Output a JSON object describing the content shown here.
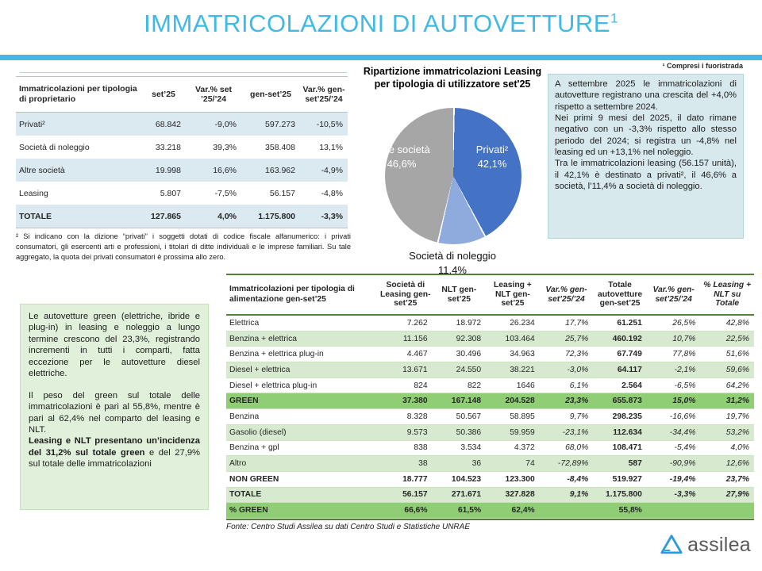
{
  "page": {
    "title": "IMMATRICOLAZIONI DI AUTOVETTURE",
    "title_superscript": "1",
    "top_note": "¹ Compresi i fuoristrada",
    "fonte": "Fonte: Centro Studi Assilea su dati Centro Studi e Statistiche UNRAE",
    "logo_text": "assilea"
  },
  "colors": {
    "accent_teal": "#41B8E6",
    "title_blue": "#3FB9E5",
    "owner_row_shade": "#DBE9F1",
    "info_box_bg": "#D8E9EE",
    "green_box_bg": "#E1F0DB",
    "fuel_row_shade": "#D7EACF",
    "fuel_row_green": "#8FCE74",
    "fuel_border_green": "#548235",
    "logo_blue": "#2D9CDB",
    "logo_gray": "#58595B"
  },
  "owner_table": {
    "title_header": "Immatricolazioni per tipologia di proprietario",
    "col_headers": [
      "set’25",
      "Var.% set ’25/’24",
      "gen-set’25",
      "Var.% gen-set’25/’24"
    ],
    "col_classes": [
      "lbl",
      "num",
      "num",
      "num",
      "num"
    ],
    "rows": [
      {
        "label": "Privati²",
        "cells": [
          "68.842",
          "-9,0%",
          "597.273",
          "-10,5%"
        ],
        "row_class": "shade"
      },
      {
        "label": "Società di noleggio",
        "cells": [
          "33.218",
          "39,3%",
          "358.408",
          "13,1%"
        ],
        "row_class": ""
      },
      {
        "label": "Altre società",
        "cells": [
          "19.998",
          "16,6%",
          "163.962",
          "-4,9%"
        ],
        "row_class": "shade"
      },
      {
        "label": "Leasing",
        "cells": [
          "5.807",
          "-7,5%",
          "56.157",
          "-4,8%"
        ],
        "row_class": ""
      },
      {
        "label": "TOTALE",
        "cells": [
          "127.865",
          "4,0%",
          "1.175.800",
          "-3,3%"
        ],
        "row_class": "shade bold"
      }
    ],
    "footnote": "² Si indicano con la dizione “privati” i soggetti dotati di codice fiscale alfanumerico: i privati consumatori, gli esercenti arti e professioni, i titolari di ditte individuali e le imprese familiari. Su tale aggregato, la quota dei privati consumatori è prossima allo zero."
  },
  "chart_data": {
    "type": "pie",
    "title": "Ripartizione immatricolazioni Leasing per tipologia di utilizzatore set'25",
    "legend_position": "inside",
    "slices": [
      {
        "label": "Privati²",
        "pct": "42,1%",
        "value": 42.1,
        "color": "#4472C4"
      },
      {
        "label": "Società di noleggio",
        "pct": "11,4%",
        "value": 11.4,
        "color": "#8FAADC"
      },
      {
        "label": "Altre società",
        "pct": "46,6%",
        "value": 46.6,
        "color": "#A6A6A6"
      }
    ]
  },
  "info_box": {
    "paragraphs": [
      "A settembre 2025 le immatricolazioni di autovetture registrano una crescita del +4,0% rispetto a settembre 2024.",
      "Nei primi 9 mesi del 2025, il dato rimane negativo con un -3,3% rispetto allo stesso periodo del 2024; si registra un -4,8% nel leasing ed un +13,1% nel noleggio.",
      "Tra le immatricolazioni leasing (56.157 unità), il 42,1% è destinato a privati², il 46,6% a società, l’11,4% a società di noleggio."
    ]
  },
  "green_box": {
    "p1": "Le autovetture green (elettriche, ibride e plug-in) in leasing e noleggio a lungo termine crescono del 23,3%, registrando incrementi in tutti i comparti, fatta eccezione per le autovetture diesel elettriche.",
    "p2": "Il peso del green sul totale delle immatricolazioni è pari al 55,8%, mentre è pari al 62,4% nel comparto del leasing e NLT.",
    "p3_bold": "Leasing e NLT presentano un’incidenza del 31,2% sul totale green",
    "p3_rest": " e del 27,9% sul totale delle immatricolazioni"
  },
  "fuel_table": {
    "title_header": "Immatricolazioni per tipologia di alimentazione gen-set’25",
    "col_headers": [
      "Società di Leasing gen-set’25",
      "NLT gen-set’25",
      "Leasing + NLT gen-set’25",
      "Var.% gen-set’25/’24",
      "Totale autovetture gen-set’25",
      "Var.% gen-set’25/’24",
      "% Leasing + NLT su Totale"
    ],
    "col_classes": [
      "lbl",
      "num",
      "num",
      "num",
      "pct",
      "tot",
      "pct",
      "pct"
    ],
    "rows": [
      {
        "label": "Elettrica",
        "cells": [
          "7.262",
          "18.972",
          "26.234",
          "17,7%",
          "61.251",
          "26,5%",
          "42,8%"
        ],
        "row_class": ""
      },
      {
        "label": "Benzina + elettrica",
        "cells": [
          "11.156",
          "92.308",
          "103.464",
          "25,7%",
          "460.192",
          "10,7%",
          "22,5%"
        ],
        "row_class": "shade"
      },
      {
        "label": "Benzina + elettrica plug-in",
        "cells": [
          "4.467",
          "30.496",
          "34.963",
          "72,3%",
          "67.749",
          "77,8%",
          "51,6%"
        ],
        "row_class": ""
      },
      {
        "label": "Diesel + elettrica",
        "cells": [
          "13.671",
          "24.550",
          "38.221",
          "-3,0%",
          "64.117",
          "-2,1%",
          "59,6%"
        ],
        "row_class": "shade"
      },
      {
        "label": "Diesel + elettrica plug-in",
        "cells": [
          "824",
          "822",
          "1646",
          "6,1%",
          "2.564",
          "-6,5%",
          "64,2%"
        ],
        "row_class": ""
      },
      {
        "label": "GREEN",
        "cells": [
          "37.380",
          "167.148",
          "204.528",
          "23,3%",
          "655.873",
          "15,0%",
          "31,2%"
        ],
        "row_class": "green bold"
      },
      {
        "label": "Benzina",
        "cells": [
          "8.328",
          "50.567",
          "58.895",
          "9,7%",
          "298.235",
          "-16,6%",
          "19,7%"
        ],
        "row_class": ""
      },
      {
        "label": "Gasolio (diesel)",
        "cells": [
          "9.573",
          "50.386",
          "59.959",
          "-23,1%",
          "112.634",
          "-34,4%",
          "53,2%"
        ],
        "row_class": "shade"
      },
      {
        "label": "Benzina + gpl",
        "cells": [
          "838",
          "3.534",
          "4.372",
          "68,0%",
          "108.471",
          "-5,4%",
          "4,0%"
        ],
        "row_class": ""
      },
      {
        "label": "Altro",
        "cells": [
          "38",
          "36",
          "74",
          "-72,89%",
          "587",
          "-90,9%",
          "12,6%"
        ],
        "row_class": "shade"
      },
      {
        "label": "NON GREEN",
        "cells": [
          "18.777",
          "104.523",
          "123.300",
          "-8,4%",
          "519.927",
          "-19,4%",
          "23,7%"
        ],
        "row_class": "bold"
      },
      {
        "label": "TOTALE",
        "cells": [
          "56.157",
          "271.671",
          "327.828",
          "9,1%",
          "1.175.800",
          "-3,3%",
          "27,9%"
        ],
        "row_class": "shade bold"
      },
      {
        "label": "% GREEN",
        "cells": [
          "66,6%",
          "61,5%",
          "62,4%",
          "",
          "55,8%",
          "",
          ""
        ],
        "row_class": "green bold"
      }
    ]
  }
}
